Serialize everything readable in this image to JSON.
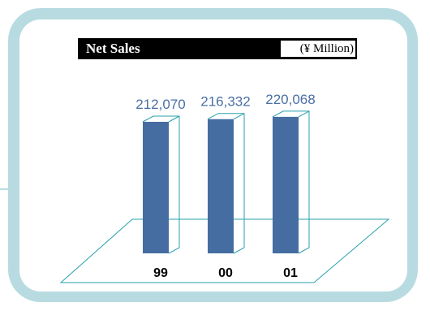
{
  "chart_data": {
    "type": "bar",
    "title": "Net Sales",
    "unit": "(¥ Million)",
    "categories": [
      "99",
      "00",
      "01"
    ],
    "values": [
      212070,
      216332,
      220068
    ],
    "value_labels": [
      "212,070",
      "216,332",
      "220,068"
    ],
    "bar_color": "#456da2",
    "outline_color": "#29a0ad",
    "label_color": "#4a6fa5"
  }
}
